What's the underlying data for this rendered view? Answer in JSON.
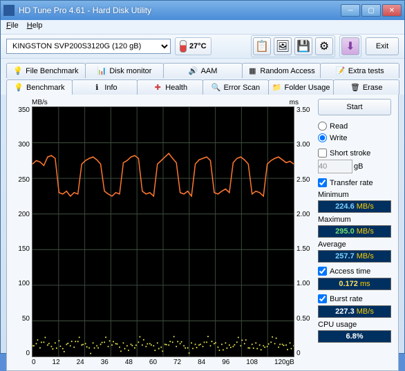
{
  "window": {
    "title": "HD Tune Pro 4.61 - Hard Disk Utility"
  },
  "menu": {
    "file": "File",
    "help": "Help"
  },
  "toolbar": {
    "drive": "KINGSTON SVP200S3120G (120 gB)",
    "temp": "27°C",
    "exit": "Exit"
  },
  "tabs_top": [
    {
      "label": "File Benchmark"
    },
    {
      "label": "Disk monitor"
    },
    {
      "label": "AAM"
    },
    {
      "label": "Random Access"
    },
    {
      "label": "Extra tests"
    }
  ],
  "tabs_bottom": [
    {
      "label": "Benchmark"
    },
    {
      "label": "Info"
    },
    {
      "label": "Health"
    },
    {
      "label": "Error Scan"
    },
    {
      "label": "Folder Usage"
    },
    {
      "label": "Erase"
    }
  ],
  "chart": {
    "ylabel_left": "MB/s",
    "ylabel_right": "ms",
    "y_left_ticks": [
      "350",
      "300",
      "250",
      "200",
      "150",
      "100",
      "50",
      "0"
    ],
    "y_right_ticks": [
      "3.50",
      "3.00",
      "2.50",
      "2.00",
      "1.50",
      "1.00",
      "0.50",
      "0"
    ],
    "x_ticks": [
      "0",
      "12",
      "24",
      "36",
      "48",
      "60",
      "72",
      "84",
      "96",
      "108",
      "120gB"
    ],
    "bg": "#000000",
    "grid_color": "#3a4a3a",
    "transfer_color": "#ff7830",
    "access_color": "#e8e850",
    "transfer_data": [
      270,
      275,
      273,
      268,
      280,
      282,
      278,
      230,
      228,
      232,
      225,
      230,
      228,
      270,
      275,
      278,
      280,
      276,
      270,
      232,
      228,
      225,
      230,
      228,
      272,
      275,
      280,
      282,
      278,
      232,
      228,
      230,
      225,
      270,
      275,
      280,
      285,
      278,
      272,
      230,
      228,
      232,
      225,
      270,
      276,
      278,
      280,
      275,
      230,
      228,
      232,
      235,
      230,
      272,
      278,
      280,
      276,
      270,
      228,
      232,
      230,
      225,
      270,
      275,
      278,
      280,
      276,
      272,
      274,
      270
    ],
    "access_data": [
      0.15,
      0.18,
      0.12,
      0.2,
      0.16,
      0.14,
      0.19,
      0.22,
      0.11,
      0.17,
      0.15,
      0.13,
      0.21,
      0.16,
      0.18,
      0.12,
      0.19,
      0.15,
      0.17,
      0.2,
      0.14,
      0.16,
      0.18,
      0.13,
      0.19,
      0.15,
      0.17,
      0.12,
      0.2,
      0.16,
      0.14,
      0.18,
      0.15,
      0.19,
      0.13,
      0.17,
      0.16,
      0.2,
      0.14,
      0.18,
      0.15,
      0.12,
      0.19,
      0.17,
      0.16,
      0.14,
      0.2,
      0.15,
      0.18,
      0.13,
      0.17,
      0.19,
      0.16,
      0.14,
      0.2,
      0.15,
      0.18,
      0.12,
      0.17,
      0.19,
      0.16,
      0.15,
      0.14,
      0.2,
      0.18,
      0.13,
      0.17,
      0.16,
      0.19,
      0.15
    ]
  },
  "side": {
    "start": "Start",
    "read": "Read",
    "write": "Write",
    "short_stroke": "Short stroke",
    "stroke_val": "40",
    "stroke_unit": "gB",
    "transfer_rate": "Transfer rate",
    "minimum": "Minimum",
    "min_val": "224.6",
    "min_unit": "MB/s",
    "maximum": "Maximum",
    "max_val": "295.0",
    "max_unit": "MB/s",
    "average": "Average",
    "avg_val": "257.7",
    "avg_unit": "MB/s",
    "access_time": "Access time",
    "at_val": "0.172",
    "at_unit": "ms",
    "burst_rate": "Burst rate",
    "br_val": "227.3",
    "br_unit": "MB/s",
    "cpu_usage": "CPU usage",
    "cpu_val": "6.8%"
  }
}
